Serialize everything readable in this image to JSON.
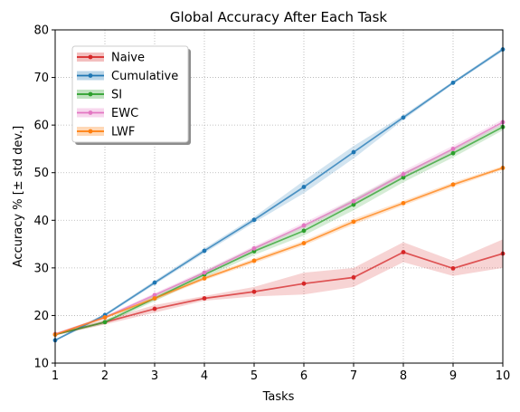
{
  "chart_data": {
    "type": "line",
    "title": "Global Accuracy After Each Task",
    "xlabel": "Tasks",
    "ylabel": "Accuracy % [± std dev.]",
    "x": [
      1,
      2,
      3,
      4,
      5,
      6,
      7,
      8,
      9,
      10
    ],
    "xlim": [
      1,
      10
    ],
    "ylim": [
      10,
      80
    ],
    "xticks": [
      1,
      2,
      3,
      4,
      5,
      6,
      7,
      8,
      9,
      10
    ],
    "yticks": [
      10,
      20,
      30,
      40,
      50,
      60,
      70,
      80
    ],
    "grid": true,
    "legend_position": "upper-left",
    "series": [
      {
        "name": "Naive",
        "color": "#d62728",
        "values": [
          16.0,
          18.6,
          21.4,
          23.6,
          25.0,
          26.7,
          28.0,
          33.3,
          29.9,
          33.0
        ],
        "std": [
          0.2,
          0.5,
          0.8,
          0.5,
          1.0,
          2.3,
          2.0,
          2.1,
          1.6,
          3.0
        ]
      },
      {
        "name": "Cumulative",
        "color": "#1f77b4",
        "values": [
          14.8,
          20.1,
          26.9,
          33.6,
          40.1,
          47.0,
          54.3,
          61.6,
          68.9,
          75.9
        ],
        "std": [
          0.2,
          0.3,
          0.4,
          0.5,
          0.6,
          1.3,
          1.3,
          0.5,
          0.3,
          0.4
        ]
      },
      {
        "name": "SI",
        "color": "#2ca02c",
        "values": [
          16.0,
          18.6,
          23.6,
          28.6,
          33.5,
          37.8,
          43.3,
          49.0,
          54.1,
          59.6
        ],
        "std": [
          0.2,
          0.4,
          0.6,
          0.7,
          0.8,
          1.0,
          1.2,
          1.0,
          0.9,
          0.7
        ]
      },
      {
        "name": "EWC",
        "color": "#e377c2",
        "values": [
          16.1,
          19.6,
          24.3,
          29.0,
          34.1,
          38.9,
          44.0,
          49.7,
          55.0,
          60.6
        ],
        "std": [
          0.2,
          0.3,
          0.4,
          0.5,
          0.5,
          0.6,
          0.6,
          0.7,
          0.7,
          0.6
        ]
      },
      {
        "name": "LWF",
        "color": "#ff7f0e",
        "values": [
          16.0,
          19.6,
          23.6,
          27.8,
          31.5,
          35.2,
          39.7,
          43.6,
          47.5,
          51.0
        ],
        "std": [
          0.2,
          0.3,
          0.4,
          0.4,
          0.5,
          0.5,
          0.6,
          0.5,
          0.5,
          0.4
        ]
      }
    ]
  }
}
